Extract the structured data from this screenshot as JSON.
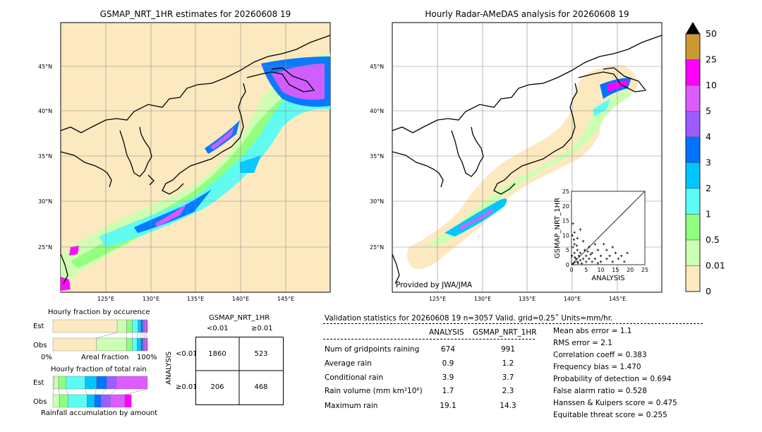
{
  "left_map": {
    "title": "GSMAP_NRT_1HR estimates for 20260608 19",
    "lat_labels": [
      "45°N",
      "40°N",
      "35°N",
      "30°N",
      "25°N"
    ],
    "lon_labels": [
      "125°E",
      "130°E",
      "135°E",
      "140°E",
      "145°E"
    ]
  },
  "right_map": {
    "title": "Hourly Radar-AMeDAS analysis for 20260608 19",
    "lat_labels": [
      "45°N",
      "40°N",
      "35°N",
      "30°N",
      "25°N"
    ],
    "lon_labels": [
      "125°E",
      "130°E",
      "135°E",
      "140°E",
      "145°E"
    ],
    "credit": "Provided by JWA/JMA"
  },
  "colorbar": {
    "levels": [
      "50",
      "25",
      "10",
      "5",
      "4",
      "3",
      "2",
      "1",
      "0.5",
      "0.01",
      "0"
    ],
    "colors": [
      "#fde9c0",
      "#ccffb2",
      "#8eff7e",
      "#5cfbf6",
      "#00c6ff",
      "#0073ff",
      "#9c5cff",
      "#dc5cff",
      "#ff00ff",
      "#cc9933"
    ],
    "extend_color": "#000000"
  },
  "scatter_inset": {
    "xlabel": "ANALYSIS",
    "ylabel": "GSMAP_NRT_1HR",
    "ticks": [
      "0",
      "5",
      "10",
      "15",
      "20",
      "25"
    ]
  },
  "occurrence": {
    "title": "Hourly fraction by occurence",
    "est_label": "Est",
    "obs_label": "Obs",
    "axis_left": "0%",
    "axis_mid": "Areal fraction",
    "axis_right": "100%"
  },
  "total_rain": {
    "title": "Hourly fraction of total rain",
    "est_label": "Est",
    "obs_label": "Obs",
    "footer": "Rainfall accumulation by amount"
  },
  "contingency": {
    "header": "GSMAP_NRT_1HR",
    "col_labels": [
      "<0.01",
      "≥0.01"
    ],
    "row_axis": "ANALYSIS",
    "row_labels": [
      "<0.01",
      "≥0.01"
    ],
    "cells": [
      [
        "1860",
        "523"
      ],
      [
        "206",
        "468"
      ]
    ]
  },
  "validation": {
    "header": "Validation statistics for 20260608 19  n=3057 Valid. grid=0.25˚ Units=mm/hr.",
    "col_analysis": "ANALYSIS",
    "col_gsmap": "GSMAP_NRT_1HR",
    "rows": [
      {
        "label": "Num of gridpoints raining",
        "analysis": "674",
        "gsmap": "991"
      },
      {
        "label": "Average rain",
        "analysis": "0.9",
        "gsmap": "1.2"
      },
      {
        "label": "Conditional rain",
        "analysis": "3.9",
        "gsmap": "3.7"
      },
      {
        "label": "Rain volume (mm km²10⁶)",
        "analysis": "1.7",
        "gsmap": "2.3"
      },
      {
        "label": "Maximum rain",
        "analysis": "19.1",
        "gsmap": "14.3"
      }
    ],
    "scores": [
      "Mean abs error =    1.1",
      "RMS error =    2.1",
      "Correlation coeff =  0.383",
      "Frequency bias =  1.470",
      "Probability of detection =  0.694",
      "False alarm ratio =  0.528",
      "Hanssen & Kuipers score =  0.475",
      "Equitable threat score =  0.255"
    ]
  },
  "chart_data": [
    {
      "type": "scatter",
      "title": "",
      "xlabel": "ANALYSIS",
      "ylabel": "GSMAP_NRT_1HR",
      "xlim": [
        0,
        25
      ],
      "ylim": [
        0,
        25
      ],
      "diagonal": true,
      "points": [
        [
          0.5,
          0.3
        ],
        [
          1,
          0.8
        ],
        [
          1.5,
          2
        ],
        [
          2,
          1
        ],
        [
          2.5,
          3
        ],
        [
          3,
          1.5
        ],
        [
          1,
          4
        ],
        [
          0.5,
          6
        ],
        [
          1,
          7
        ],
        [
          2,
          5
        ],
        [
          3,
          4
        ],
        [
          4,
          2
        ],
        [
          5,
          1
        ],
        [
          5,
          3
        ],
        [
          6,
          2
        ],
        [
          7,
          4
        ],
        [
          8,
          2
        ],
        [
          9,
          5
        ],
        [
          10,
          3
        ],
        [
          11,
          7
        ],
        [
          12,
          5
        ],
        [
          13,
          3
        ],
        [
          14,
          6
        ],
        [
          15,
          4
        ],
        [
          16,
          2
        ],
        [
          17,
          3
        ],
        [
          18,
          1
        ],
        [
          19,
          4
        ],
        [
          2,
          9
        ],
        [
          1,
          11
        ],
        [
          3,
          12
        ],
        [
          0.5,
          14
        ],
        [
          0.3,
          10
        ],
        [
          4,
          8
        ],
        [
          6,
          6
        ],
        [
          8,
          7
        ],
        [
          10,
          1
        ],
        [
          12,
          2
        ],
        [
          7,
          1
        ],
        [
          9,
          0.5
        ],
        [
          14,
          1
        ],
        [
          0.2,
          3
        ],
        [
          1.2,
          2.5
        ],
        [
          2.2,
          0.6
        ],
        [
          3.5,
          0.4
        ],
        [
          4.5,
          5
        ],
        [
          5.5,
          4.5
        ],
        [
          6.5,
          3.5
        ],
        [
          1.8,
          6.5
        ],
        [
          0.8,
          8.5
        ]
      ]
    },
    {
      "type": "bar",
      "title": "Hourly fraction by occurence",
      "categories": [
        "Est",
        "Obs"
      ],
      "series": [
        {
          "values": [
            0.68,
            0.46
          ],
          "color": "#fde9c0"
        },
        {
          "values": [
            0.1,
            0.32
          ],
          "color": "#ccffb2"
        },
        {
          "values": [
            0.06,
            0.06
          ],
          "color": "#8eff7e"
        },
        {
          "values": [
            0.06,
            0.05
          ],
          "color": "#5cfbf6"
        },
        {
          "values": [
            0.03,
            0.04
          ],
          "color": "#00c6ff"
        },
        {
          "values": [
            0.02,
            0.02
          ],
          "color": "#0073ff"
        },
        {
          "values": [
            0.02,
            0.02
          ],
          "color": "#9c5cff"
        },
        {
          "values": [
            0.02,
            0.02
          ],
          "color": "#dc5cff"
        },
        {
          "values": [
            0.01,
            0.01
          ],
          "color": "#ff00ff"
        }
      ]
    },
    {
      "type": "bar",
      "title": "Hourly fraction of total rain",
      "categories": [
        "Est",
        "Obs"
      ],
      "series": [
        {
          "values": [
            0.01,
            0.0
          ],
          "color": "#fde9c0"
        },
        {
          "values": [
            0.05,
            0.07
          ],
          "color": "#ccffb2"
        },
        {
          "values": [
            0.08,
            0.09
          ],
          "color": "#8eff7e"
        },
        {
          "values": [
            0.2,
            0.2
          ],
          "color": "#5cfbf6"
        },
        {
          "values": [
            0.12,
            0.08
          ],
          "color": "#00c6ff"
        },
        {
          "values": [
            0.11,
            0.07
          ],
          "color": "#0073ff"
        },
        {
          "values": [
            0.1,
            0.1
          ],
          "color": "#9c5cff"
        },
        {
          "values": [
            0.33,
            0.15
          ],
          "color": "#dc5cff"
        },
        {
          "values": [
            0.0,
            0.07
          ],
          "color": "#ff00ff"
        }
      ]
    }
  ]
}
